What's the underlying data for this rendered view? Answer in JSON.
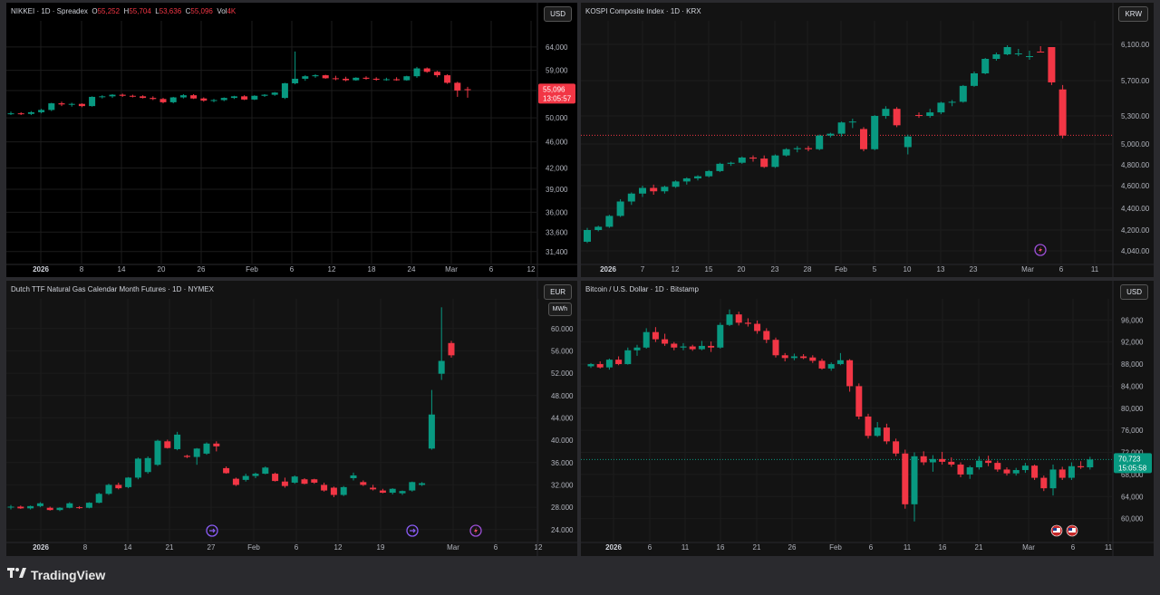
{
  "app": {
    "brand": "TradingView"
  },
  "colors": {
    "up": "#089981",
    "down": "#f23645",
    "grid": "#1f1f1f",
    "text": "#b2b5be"
  },
  "panels": [
    {
      "title": "NIKKEI · 1D · Spreadex",
      "ohlc": {
        "o_label": "O",
        "o": "55,252",
        "h_label": "H",
        "h": "55,704",
        "l_label": "L",
        "l": "53,636",
        "c_label": "C",
        "c": "55,096",
        "vol_label": "Vol",
        "vol": "4K"
      },
      "currency": "USD",
      "last_price": "55,096",
      "countdown": "13:05:57"
    },
    {
      "title": "KOSPI Composite Index · 1D · KRX",
      "currency": "KRW"
    },
    {
      "title": "Dutch TTF Natural Gas Calendar Month Futures · 1D · NYMEX",
      "currency": "EUR",
      "unit": "MWh"
    },
    {
      "title": "Bitcoin / U.S. Dollar · 1D · Bitstamp",
      "currency": "USD",
      "last_price": "70,723",
      "countdown": "15:05:58"
    }
  ],
  "chart_data": [
    {
      "type": "candlestick",
      "title": "NIKKEI · 1D · Spreadex",
      "y_ticks": [
        "64,000",
        "59,000",
        "55,000",
        "50,000",
        "46,000",
        "42,000",
        "39,000",
        "36,000",
        "33,600",
        "31,400"
      ],
      "x_ticks": [
        "2026",
        "8",
        "14",
        "20",
        "26",
        "Feb",
        "6",
        "12",
        "18",
        "24",
        "Mar",
        "6",
        "12"
      ],
      "scale": "log",
      "ylim": [
        30500,
        69000
      ],
      "candles": [
        [
          50700,
          51100,
          50500,
          50800
        ],
        [
          50800,
          51000,
          50500,
          50700
        ],
        [
          50700,
          51200,
          50500,
          51000
        ],
        [
          51000,
          51600,
          50800,
          51400
        ],
        [
          51400,
          52700,
          51200,
          52600
        ],
        [
          52600,
          52900,
          52100,
          52400
        ],
        [
          52400,
          52700,
          52000,
          52500
        ],
        [
          52500,
          52600,
          51900,
          52100
        ],
        [
          52100,
          53900,
          52000,
          53800
        ],
        [
          53800,
          54100,
          53500,
          53900
        ],
        [
          53900,
          54300,
          53600,
          54200
        ],
        [
          54200,
          54400,
          53800,
          54000
        ],
        [
          54000,
          54200,
          53700,
          53900
        ],
        [
          53900,
          54100,
          53500,
          53600
        ],
        [
          53600,
          53900,
          53200,
          53400
        ],
        [
          53400,
          53600,
          52600,
          52800
        ],
        [
          52800,
          53800,
          52600,
          53700
        ],
        [
          53700,
          54300,
          53500,
          54100
        ],
        [
          54100,
          54300,
          53400,
          53500
        ],
        [
          53500,
          53700,
          52900,
          53100
        ],
        [
          53100,
          53400,
          52800,
          53200
        ],
        [
          53200,
          53700,
          53000,
          53600
        ],
        [
          53600,
          54000,
          53400,
          53900
        ],
        [
          53900,
          54100,
          53200,
          53300
        ],
        [
          53300,
          54100,
          53200,
          54000
        ],
        [
          54000,
          54300,
          53800,
          54200
        ],
        [
          54200,
          54700,
          54000,
          54600
        ],
        [
          53600,
          56500,
          53400,
          56400
        ],
        [
          56400,
          63000,
          56200,
          57300
        ],
        [
          57300,
          58000,
          56900,
          57800
        ],
        [
          57800,
          58200,
          57500,
          58000
        ],
        [
          58000,
          58100,
          57300,
          57400
        ],
        [
          57400,
          57900,
          57000,
          57300
        ],
        [
          57300,
          57700,
          56800,
          57000
        ],
        [
          57000,
          57600,
          56900,
          57500
        ],
        [
          57500,
          57800,
          57100,
          57300
        ],
        [
          57300,
          57600,
          56900,
          57100
        ],
        [
          57100,
          57500,
          56900,
          57200
        ],
        [
          57200,
          57600,
          56900,
          57000
        ],
        [
          57000,
          57900,
          56900,
          57800
        ],
        [
          57800,
          59700,
          57500,
          59400
        ],
        [
          59400,
          59600,
          58500,
          58700
        ],
        [
          58700,
          58900,
          57600,
          58000
        ],
        [
          58000,
          58200,
          56300,
          56500
        ],
        [
          56500,
          56700,
          53800,
          55000
        ],
        [
          55252,
          55704,
          53636,
          55096
        ]
      ]
    },
    {
      "type": "candlestick",
      "title": "KOSPI Composite Index · 1D · KRX",
      "y_ticks": [
        "6,100.00",
        "5,700.00",
        "5,300.00",
        "5,000.00",
        "4,800.00",
        "4,600.00",
        "4,400.00",
        "4,200.00",
        "4,040.00"
      ],
      "x_ticks": [
        "2026",
        "7",
        "12",
        "15",
        "20",
        "23",
        "28",
        "Feb",
        "5",
        "10",
        "13",
        "23",
        "Mar",
        "6",
        "11"
      ],
      "ylim": [
        3930,
        6300
      ],
      "candles": [
        [
          4110,
          4220,
          4100,
          4200
        ],
        [
          4200,
          4240,
          4190,
          4230
        ],
        [
          4230,
          4340,
          4220,
          4330
        ],
        [
          4330,
          4480,
          4320,
          4460
        ],
        [
          4460,
          4540,
          4430,
          4530
        ],
        [
          4530,
          4600,
          4500,
          4580
        ],
        [
          4580,
          4610,
          4520,
          4550
        ],
        [
          4550,
          4600,
          4530,
          4590
        ],
        [
          4590,
          4650,
          4580,
          4640
        ],
        [
          4640,
          4680,
          4610,
          4670
        ],
        [
          4670,
          4700,
          4650,
          4690
        ],
        [
          4690,
          4750,
          4680,
          4740
        ],
        [
          4740,
          4820,
          4730,
          4810
        ],
        [
          4810,
          4830,
          4790,
          4820
        ],
        [
          4820,
          4880,
          4810,
          4870
        ],
        [
          4870,
          4890,
          4830,
          4860
        ],
        [
          4860,
          4890,
          4770,
          4780
        ],
        [
          4780,
          4900,
          4770,
          4890
        ],
        [
          4890,
          4960,
          4880,
          4950
        ],
        [
          4950,
          4980,
          4920,
          4960
        ],
        [
          4960,
          4980,
          4930,
          4950
        ],
        [
          4950,
          5100,
          4940,
          5090
        ],
        [
          5090,
          5120,
          5070,
          5110
        ],
        [
          5110,
          5240,
          5080,
          5230
        ],
        [
          5230,
          5270,
          5170,
          5240
        ],
        [
          5160,
          5180,
          4930,
          4950
        ],
        [
          4950,
          5310,
          4940,
          5300
        ],
        [
          5300,
          5410,
          5270,
          5380
        ],
        [
          5380,
          5400,
          5180,
          5200
        ],
        [
          4970,
          5100,
          4900,
          5080
        ],
        [
          5310,
          5340,
          5280,
          5300
        ],
        [
          5300,
          5380,
          5280,
          5340
        ],
        [
          5340,
          5460,
          5320,
          5450
        ],
        [
          5450,
          5480,
          5410,
          5460
        ],
        [
          5460,
          5650,
          5450,
          5640
        ],
        [
          5640,
          5800,
          5630,
          5780
        ],
        [
          5780,
          5950,
          5770,
          5940
        ],
        [
          5940,
          6010,
          5920,
          5990
        ],
        [
          5990,
          6090,
          5980,
          6070
        ],
        [
          6070,
          6230,
          6050,
          6200
        ],
        [
          6200,
          6270,
          6170,
          6230
        ],
        [
          6180,
          6190,
          6120,
          6130
        ],
        [
          6130,
          6160,
          5650,
          5680
        ],
        [
          5600,
          5650,
          5060,
          5090
        ]
      ],
      "reference_line": 5093
    },
    {
      "type": "candlestick",
      "title": "Dutch TTF Natural Gas Calendar Month Futures · 1D · NYMEX",
      "y_ticks": [
        "60.000",
        "56.000",
        "52.000",
        "48.000",
        "44.000",
        "40.000",
        "36.000",
        "32.000",
        "28.000",
        "24.000"
      ],
      "x_ticks": [
        "2026",
        "8",
        "14",
        "21",
        "27",
        "Feb",
        "6",
        "12",
        "19",
        "Mar",
        "6",
        "12"
      ],
      "ylim": [
        22.5,
        64.5
      ],
      "candles": [
        [
          28.0,
          28.4,
          27.6,
          28.1
        ],
        [
          28.1,
          28.3,
          27.7,
          27.8
        ],
        [
          27.8,
          28.3,
          27.6,
          28.2
        ],
        [
          28.2,
          28.9,
          28.0,
          28.7
        ],
        [
          27.9,
          28.1,
          27.4,
          27.5
        ],
        [
          27.5,
          28.0,
          27.3,
          27.9
        ],
        [
          27.9,
          28.9,
          27.8,
          28.7
        ],
        [
          28.0,
          28.2,
          27.7,
          27.9
        ],
        [
          27.9,
          28.9,
          27.8,
          28.8
        ],
        [
          28.8,
          30.6,
          28.7,
          30.4
        ],
        [
          30.4,
          32.2,
          30.2,
          32.0
        ],
        [
          32.0,
          32.4,
          31.2,
          31.4
        ],
        [
          31.6,
          33.4,
          31.4,
          33.3
        ],
        [
          33.3,
          36.9,
          33.0,
          36.7
        ],
        [
          34.3,
          37.1,
          34.0,
          36.8
        ],
        [
          35.6,
          40.1,
          35.4,
          39.9
        ],
        [
          39.8,
          40.1,
          38.5,
          38.6
        ],
        [
          38.4,
          41.5,
          38.2,
          41.0
        ],
        [
          37.2,
          37.4,
          36.8,
          37.0
        ],
        [
          37.0,
          38.6,
          35.6,
          38.5
        ],
        [
          37.6,
          39.6,
          37.4,
          39.4
        ],
        [
          39.4,
          39.8,
          38.0,
          38.9
        ],
        [
          35.0,
          35.3,
          34.0,
          34.1
        ],
        [
          33.1,
          33.3,
          31.8,
          32.0
        ],
        [
          32.9,
          34.0,
          32.6,
          33.6
        ],
        [
          33.6,
          34.2,
          33.2,
          34.0
        ],
        [
          34.0,
          35.3,
          33.9,
          35.1
        ],
        [
          34.0,
          34.2,
          32.6,
          32.7
        ],
        [
          32.6,
          33.3,
          31.5,
          31.8
        ],
        [
          32.4,
          33.7,
          32.2,
          33.5
        ],
        [
          33.0,
          33.2,
          32.1,
          32.2
        ],
        [
          33.0,
          33.1,
          32.2,
          32.4
        ],
        [
          32.0,
          32.4,
          30.8,
          31.0
        ],
        [
          31.5,
          31.7,
          29.8,
          30.2
        ],
        [
          30.2,
          31.8,
          30.0,
          31.6
        ],
        [
          33.2,
          34.2,
          32.8,
          33.7
        ],
        [
          32.5,
          32.8,
          31.8,
          32.0
        ],
        [
          31.5,
          32.0,
          31.0,
          31.2
        ],
        [
          31.0,
          31.3,
          30.5,
          30.6
        ],
        [
          30.6,
          31.4,
          30.3,
          31.3
        ],
        [
          30.5,
          31.0,
          30.2,
          30.9
        ],
        [
          31.0,
          32.6,
          30.8,
          32.5
        ],
        [
          32.0,
          32.5,
          31.8,
          32.3
        ],
        [
          38.5,
          49.0,
          38.3,
          44.6
        ],
        [
          51.9,
          63.8,
          50.8,
          54.2
        ],
        [
          57.4,
          57.8,
          54.8,
          55.2
        ]
      ]
    },
    {
      "type": "candlestick",
      "title": "Bitcoin / U.S. Dollar · 1D · Bitstamp",
      "y_ticks": [
        "96,000",
        "92,000",
        "88,000",
        "84,000",
        "80,000",
        "76,000",
        "72,000",
        "68,000",
        "64,000",
        "60,000"
      ],
      "x_ticks": [
        "2026",
        "6",
        "11",
        "16",
        "21",
        "26",
        "Feb",
        "6",
        "11",
        "16",
        "21",
        "Mar",
        "6",
        "11"
      ],
      "ylim": [
        56500,
        99000
      ],
      "candles": [
        [
          87600,
          88200,
          87300,
          88000
        ],
        [
          88000,
          88500,
          87200,
          87400
        ],
        [
          87400,
          89000,
          87000,
          88800
        ],
        [
          88800,
          89400,
          87800,
          88000
        ],
        [
          88000,
          91000,
          87900,
          90500
        ],
        [
          90500,
          91500,
          89500,
          91000
        ],
        [
          91000,
          94500,
          90800,
          93800
        ],
        [
          93800,
          94700,
          92000,
          92500
        ],
        [
          92500,
          93500,
          91300,
          91700
        ],
        [
          91700,
          92000,
          90500,
          91000
        ],
        [
          91000,
          91800,
          90500,
          91200
        ],
        [
          91200,
          91500,
          90400,
          90700
        ],
        [
          90700,
          92200,
          90500,
          91300
        ],
        [
          91300,
          92100,
          90200,
          91000
        ],
        [
          91000,
          95500,
          90800,
          95100
        ],
        [
          95100,
          97900,
          94900,
          97000
        ],
        [
          97000,
          97500,
          95000,
          95500
        ],
        [
          95500,
          96300,
          94800,
          95300
        ],
        [
          95300,
          95900,
          93500,
          94000
        ],
        [
          94000,
          94500,
          91800,
          92400
        ],
        [
          92400,
          92800,
          89200,
          89600
        ],
        [
          89600,
          90000,
          88500,
          89100
        ],
        [
          89100,
          89900,
          88700,
          89400
        ],
        [
          89400,
          89800,
          88900,
          89100
        ],
        [
          89200,
          89600,
          88200,
          88600
        ],
        [
          88600,
          89000,
          87000,
          87200
        ],
        [
          87200,
          88300,
          86800,
          88000
        ],
        [
          88000,
          90000,
          87800,
          88700
        ],
        [
          88700,
          88900,
          83000,
          84000
        ],
        [
          84000,
          84500,
          78000,
          78500
        ],
        [
          78500,
          79000,
          74500,
          75000
        ],
        [
          75000,
          77500,
          74800,
          76500
        ],
        [
          76500,
          77200,
          73500,
          74000
        ],
        [
          74000,
          74500,
          71300,
          71800
        ],
        [
          71800,
          72500,
          61800,
          62600
        ],
        [
          62600,
          72000,
          59500,
          71300
        ],
        [
          71300,
          72200,
          69700,
          70200
        ],
        [
          70200,
          71500,
          68500,
          70800
        ],
        [
          70800,
          72100,
          69800,
          70300
        ],
        [
          70300,
          71100,
          69400,
          69800
        ],
        [
          69800,
          70200,
          67500,
          68000
        ],
        [
          68000,
          69600,
          67200,
          69300
        ],
        [
          69300,
          71300,
          68900,
          70500
        ],
        [
          70500,
          71400,
          69500,
          70100
        ],
        [
          70100,
          70500,
          68500,
          68900
        ],
        [
          68900,
          69300,
          67800,
          68200
        ],
        [
          68200,
          69200,
          67800,
          68800
        ],
        [
          68800,
          70100,
          68300,
          69600
        ],
        [
          69600,
          69800,
          67000,
          67400
        ],
        [
          67400,
          67800,
          65000,
          65500
        ],
        [
          65500,
          69800,
          64200,
          68900
        ],
        [
          68900,
          69400,
          67000,
          67400
        ],
        [
          67400,
          70200,
          67000,
          69500
        ],
        [
          69500,
          70400,
          69000,
          69300
        ],
        [
          69300,
          71200,
          68900,
          70723
        ]
      ],
      "reference_line": 70723
    }
  ]
}
